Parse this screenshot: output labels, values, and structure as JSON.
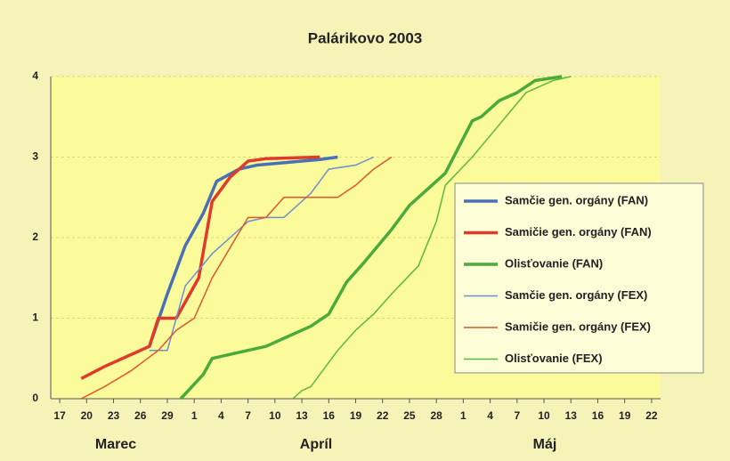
{
  "chart_data": {
    "type": "line",
    "title": "Palárikovo 2003",
    "months": [
      "Marec",
      "Apríl",
      "Máj"
    ],
    "xlim": [
      -1,
      67
    ],
    "xticks": [
      {
        "value": 0,
        "label": "17"
      },
      {
        "value": 3,
        "label": "20"
      },
      {
        "value": 6,
        "label": "23"
      },
      {
        "value": 9,
        "label": "26"
      },
      {
        "value": 12,
        "label": "29"
      },
      {
        "value": 15,
        "label": "1"
      },
      {
        "value": 18,
        "label": "4"
      },
      {
        "value": 21,
        "label": "7"
      },
      {
        "value": 24,
        "label": "10"
      },
      {
        "value": 27,
        "label": "13"
      },
      {
        "value": 30,
        "label": "16"
      },
      {
        "value": 33,
        "label": "19"
      },
      {
        "value": 36,
        "label": "22"
      },
      {
        "value": 39,
        "label": "25"
      },
      {
        "value": 42,
        "label": "28"
      },
      {
        "value": 45,
        "label": "1"
      },
      {
        "value": 48,
        "label": "4"
      },
      {
        "value": 51,
        "label": "7"
      },
      {
        "value": 54,
        "label": "10"
      },
      {
        "value": 57,
        "label": "13"
      },
      {
        "value": 60,
        "label": "16"
      },
      {
        "value": 63,
        "label": "19"
      },
      {
        "value": 66,
        "label": "22"
      }
    ],
    "ylim": [
      0,
      4
    ],
    "yticks": [
      0,
      1,
      2,
      3,
      4
    ],
    "grid": true,
    "series": [
      {
        "name": "Samčie gen. orgány (FAN)",
        "color": "#4a6fb5",
        "width": 3.5,
        "x": [
          10,
          12,
          14,
          16,
          17.5,
          20,
          22,
          25,
          27,
          29,
          31
        ],
        "values": [
          0.65,
          1.3,
          1.9,
          2.3,
          2.7,
          2.85,
          2.9,
          2.93,
          2.95,
          2.97,
          3.0
        ]
      },
      {
        "name": "Samičie gen. orgány (FAN)",
        "color": "#e03a2a",
        "width": 3.5,
        "x": [
          2.4,
          5,
          8,
          10,
          11,
          13,
          15.5,
          17,
          19,
          21,
          23,
          26,
          29
        ],
        "values": [
          0.25,
          0.4,
          0.55,
          0.65,
          1.0,
          1.0,
          1.5,
          2.45,
          2.75,
          2.95,
          2.98,
          2.99,
          3.0
        ]
      },
      {
        "name": "Olisťovanie (FAN)",
        "color": "#4aaa3a",
        "width": 3.5,
        "x": [
          13.5,
          16,
          17,
          19,
          21,
          23,
          25,
          28,
          30,
          32,
          34,
          37,
          39,
          42,
          43,
          46,
          47,
          49,
          51,
          53,
          56
        ],
        "values": [
          0,
          0.3,
          0.5,
          0.55,
          0.6,
          0.65,
          0.75,
          0.9,
          1.05,
          1.45,
          1.7,
          2.1,
          2.4,
          2.7,
          2.8,
          3.45,
          3.5,
          3.7,
          3.8,
          3.95,
          4.0
        ]
      },
      {
        "name": "Samčie gen. orgány (FEX)",
        "color": "#6b8fd0",
        "width": 1.5,
        "x": [
          10,
          12,
          14,
          17,
          19,
          21,
          23,
          25,
          28,
          30,
          33,
          35
        ],
        "values": [
          0.6,
          0.6,
          1.4,
          1.8,
          2.0,
          2.2,
          2.25,
          2.25,
          2.55,
          2.85,
          2.9,
          3.0
        ]
      },
      {
        "name": "Samičie gen. orgány (FEX)",
        "color": "#e0552a",
        "width": 1.5,
        "x": [
          2.4,
          5,
          8,
          11,
          13,
          15,
          17,
          21,
          23,
          25,
          29,
          31,
          33,
          35,
          37
        ],
        "values": [
          0,
          0.15,
          0.35,
          0.6,
          0.85,
          1.0,
          1.5,
          2.25,
          2.25,
          2.5,
          2.5,
          2.5,
          2.65,
          2.85,
          3.0
        ]
      },
      {
        "name": "Olisťovanie (FEX)",
        "color": "#5cb83e",
        "width": 1.5,
        "x": [
          26,
          27,
          28,
          31,
          33,
          35,
          37,
          40,
          42,
          43,
          46,
          49,
          52,
          55,
          57
        ],
        "values": [
          0,
          0.1,
          0.15,
          0.6,
          0.85,
          1.05,
          1.3,
          1.65,
          2.2,
          2.65,
          3.0,
          3.4,
          3.8,
          3.95,
          4.0
        ]
      }
    ]
  }
}
